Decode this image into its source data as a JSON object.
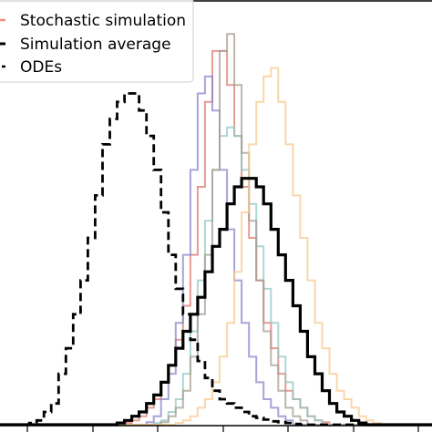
{
  "chart_data": {
    "type": "line",
    "title": "",
    "xlabel": "",
    "ylabel": "",
    "step_histogram": true,
    "x_edges": [
      0,
      1,
      2,
      3,
      4,
      5,
      6,
      7,
      8,
      9,
      10,
      11,
      12,
      13,
      14,
      15,
      16,
      17,
      18,
      19,
      20,
      21,
      22,
      23,
      24,
      25,
      26,
      27,
      28,
      29,
      30,
      31,
      32,
      33,
      34,
      35,
      36,
      37,
      38,
      39,
      40,
      41,
      42,
      43,
      44,
      45,
      46,
      47,
      48,
      49,
      50,
      51,
      52,
      53,
      54,
      55,
      56,
      57,
      58,
      59
    ],
    "xlim": [
      0,
      59
    ],
    "ylim": [
      0,
      50
    ],
    "legend": {
      "placement": "upper-left",
      "entries": [
        {
          "label": "Stochastic simulation",
          "color": "#f08f7e",
          "style": "solid"
        },
        {
          "label": "Simulation average",
          "color": "#000000",
          "style": "solid"
        },
        {
          "label": "ODEs",
          "color": "#000000",
          "style": "dashed"
        }
      ]
    },
    "series": [
      {
        "role": "ode",
        "color": "#000000",
        "style": "dashed",
        "opacity": 1,
        "values": [
          0,
          0,
          0,
          0,
          0.2,
          0.5,
          1.5,
          2.5,
          6,
          9,
          13,
          17,
          22,
          27,
          33,
          36,
          38,
          39,
          39,
          37,
          34,
          30,
          25,
          20,
          16,
          13,
          10,
          7.5,
          5.5,
          4,
          3,
          2.5,
          2,
          1.5,
          1,
          0.8,
          0.6,
          0.4,
          0.3,
          0.2,
          0.1,
          0,
          0,
          0,
          0,
          0,
          0,
          0,
          0,
          0,
          0,
          0,
          0,
          0,
          0,
          0,
          0,
          0,
          0
        ]
      },
      {
        "role": "stochastic",
        "color": "#e07a72",
        "style": "solid",
        "opacity": 0.75,
        "values": [
          0,
          0,
          0,
          0,
          0,
          0,
          0,
          0,
          0,
          0,
          0,
          0,
          0,
          0,
          0,
          0,
          0,
          0.2,
          0.5,
          1,
          2,
          3,
          5,
          7,
          10,
          14,
          20,
          28,
          38,
          44,
          44,
          40,
          34,
          28,
          22,
          17,
          12,
          9,
          6,
          4,
          3,
          2,
          1,
          0.5,
          0.3,
          0,
          0,
          0,
          0,
          0,
          0,
          0,
          0,
          0,
          0,
          0,
          0,
          0,
          0
        ]
      },
      {
        "role": "stochastic",
        "color": "#8a85c9",
        "style": "solid",
        "opacity": 0.75,
        "values": [
          0,
          0,
          0,
          0,
          0,
          0,
          0,
          0,
          0,
          0,
          0,
          0,
          0,
          0,
          0,
          0,
          0,
          0,
          0,
          0,
          0.3,
          1,
          3,
          6,
          12,
          20,
          30,
          39,
          41,
          37,
          30,
          23,
          17,
          12,
          8,
          5,
          3,
          2,
          1,
          0.5,
          0,
          0,
          0,
          0,
          0,
          0,
          0,
          0,
          0,
          0,
          0,
          0,
          0,
          0,
          0,
          0,
          0,
          0,
          0
        ]
      },
      {
        "role": "stochastic",
        "color": "#8fc9c6",
        "style": "solid",
        "opacity": 0.75,
        "values": [
          0,
          0,
          0,
          0,
          0,
          0,
          0,
          0,
          0,
          0,
          0,
          0,
          0,
          0,
          0,
          0,
          0,
          0,
          0,
          0,
          0,
          0.2,
          0.5,
          1.5,
          3,
          6,
          11,
          17,
          24,
          30,
          34,
          35,
          34,
          30,
          26,
          21,
          16,
          12,
          8,
          5,
          3,
          2,
          1,
          0.5,
          0,
          0,
          0,
          0,
          0,
          0,
          0,
          0,
          0,
          0,
          0,
          0,
          0,
          0,
          0
        ]
      },
      {
        "role": "stochastic",
        "color": "#a59d92",
        "style": "solid",
        "opacity": 0.75,
        "values": [
          0,
          0,
          0,
          0,
          0,
          0,
          0,
          0,
          0,
          0,
          0,
          0,
          0,
          0,
          0,
          0,
          0,
          0,
          0,
          0,
          0,
          0,
          0.3,
          1,
          2,
          4,
          8,
          13,
          20,
          30,
          44,
          46,
          40,
          32,
          24,
          17,
          11,
          7,
          4,
          2,
          1,
          0.5,
          0,
          0,
          0,
          0,
          0,
          0,
          0,
          0,
          0,
          0,
          0,
          0,
          0,
          0,
          0,
          0,
          0
        ]
      },
      {
        "role": "stochastic",
        "color": "#f7c98e",
        "style": "solid",
        "opacity": 0.75,
        "values": [
          0,
          0,
          0,
          0,
          0,
          0,
          0,
          0,
          0,
          0,
          0,
          0,
          0,
          0,
          0,
          0,
          0,
          0,
          0,
          0,
          0,
          0,
          0,
          0,
          0.2,
          0.5,
          1,
          2,
          3,
          5,
          8,
          12,
          18,
          25,
          33,
          38,
          41,
          42,
          38,
          33,
          27,
          22,
          17,
          12,
          9,
          6,
          4,
          3,
          2,
          1,
          0.5,
          0.2,
          0,
          0,
          0,
          0,
          0,
          0,
          0
        ]
      },
      {
        "role": "average",
        "color": "#000000",
        "style": "solid",
        "opacity": 1,
        "values": [
          0,
          0,
          0,
          0,
          0,
          0,
          0,
          0,
          0,
          0,
          0,
          0,
          0,
          0,
          0,
          0,
          0.2,
          0.5,
          1,
          1.5,
          2.5,
          3.5,
          5,
          7,
          9,
          11,
          13,
          15,
          18,
          21,
          23,
          26,
          28,
          29,
          29,
          28,
          26,
          23,
          20,
          17,
          14,
          11,
          8,
          6,
          4,
          2.5,
          1.5,
          1,
          0.5,
          0.2,
          0,
          0,
          0,
          0,
          0,
          0,
          0,
          0,
          0
        ]
      }
    ]
  }
}
